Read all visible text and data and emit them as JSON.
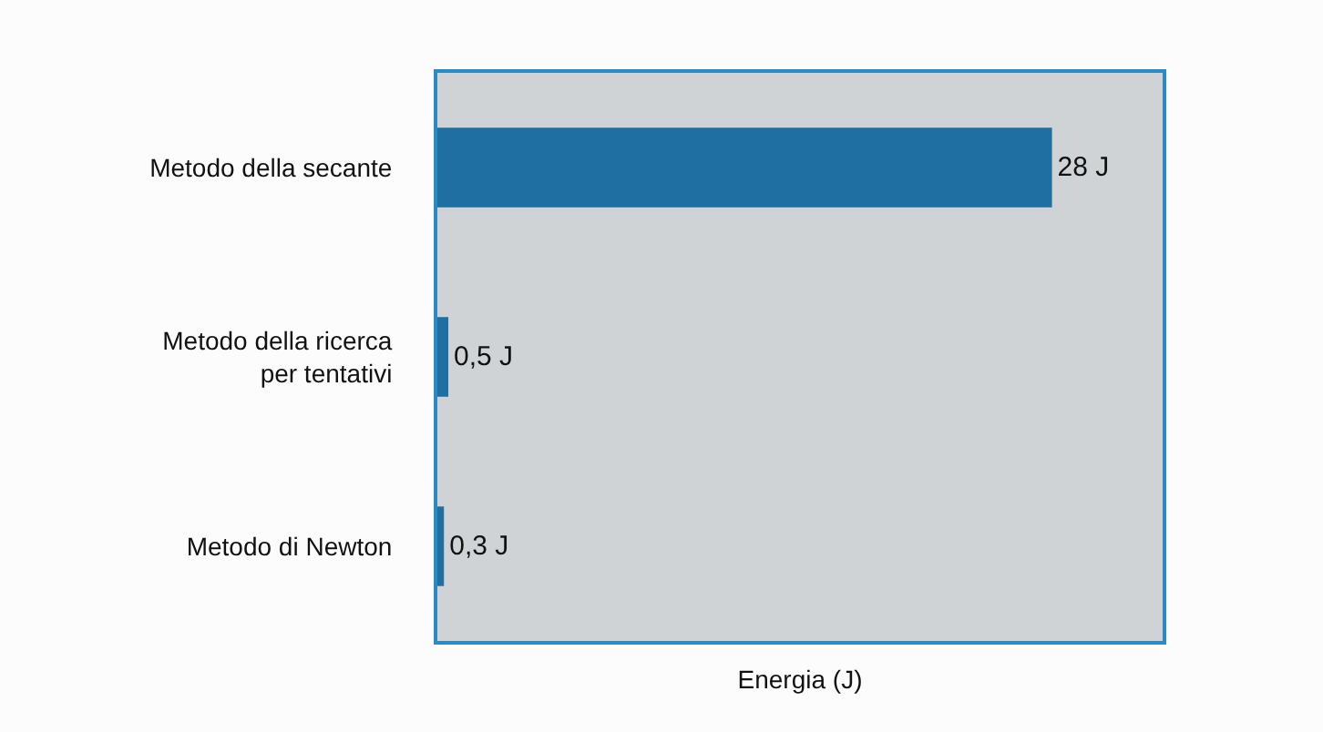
{
  "chart_data": {
    "type": "bar",
    "orientation": "horizontal",
    "xlabel": "Energia (J)",
    "categories": [
      "Metodo della secante",
      "Metodo della ricerca per tentativi",
      "Metodo di Newton"
    ],
    "values": [
      28,
      0.5,
      0.3
    ],
    "value_labels": [
      "28 J",
      "0,5 J",
      "0,3 J"
    ],
    "color": "#1f6fa3",
    "grid": false,
    "legend": false,
    "tick_labels": "y"
  }
}
